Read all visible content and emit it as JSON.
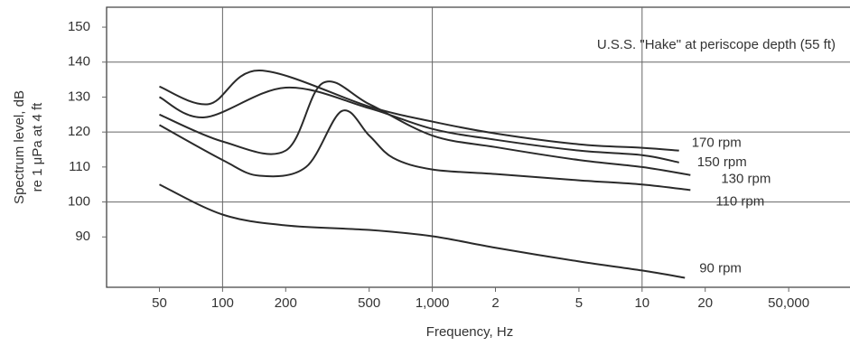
{
  "chart_data": {
    "type": "line",
    "annotation": "U.S.S. \"Hake\" at periscope depth (55 ft)",
    "xlabel": "Frequency, Hz",
    "ylabel": [
      "Spectrum level, dB",
      "re 1 μPa at 4 ft"
    ],
    "xscale": "log",
    "xlim": [
      28,
      98000
    ],
    "ylim": [
      75.6,
      155.7
    ],
    "xticks": [
      50,
      100,
      200,
      500,
      {
        "value": 1000,
        "label": "1,000"
      },
      {
        "value": 2000,
        "label": "2"
      },
      {
        "value": 5000,
        "label": "5"
      },
      {
        "value": 10000,
        "label": "10"
      },
      {
        "value": 20000,
        "label": "20"
      },
      {
        "value": 50000,
        "label": "50,000"
      }
    ],
    "yticks": [
      90,
      100,
      110,
      120,
      130,
      140,
      150
    ],
    "xgrid": [
      100,
      1000,
      10000
    ],
    "ygrid": [
      100,
      120,
      140
    ],
    "series": [
      {
        "name": "170 rpm",
        "color": "#2a2a2a",
        "x": [
          50,
          86,
          150,
          500,
          1000,
          2000,
          5000,
          10000,
          15000
        ],
        "values": [
          133,
          128,
          137.6,
          127.3,
          123,
          119.6,
          116.5,
          115.5,
          114.7
        ]
      },
      {
        "name": "150 rpm",
        "color": "#2a2a2a",
        "x": [
          50,
          82,
          200,
          500,
          1000,
          2000,
          5000,
          10000,
          15000
        ],
        "values": [
          130,
          124.2,
          132.7,
          126.8,
          120.9,
          117.8,
          114.7,
          113.4,
          111.3
        ]
      },
      {
        "name": "130 rpm",
        "color": "#2a2a2a",
        "x": [
          50,
          100,
          200,
          300,
          500,
          1000,
          2000,
          5000,
          10000,
          17000
        ],
        "values": [
          125,
          117.3,
          114.7,
          134,
          128,
          119,
          115.7,
          112,
          110,
          107.7
        ]
      },
      {
        "name": "110 rpm",
        "color": "#2a2a2a",
        "x": [
          50,
          100,
          150,
          250,
          370,
          500,
          650,
          1000,
          2000,
          5000,
          10000,
          17000
        ],
        "values": [
          122,
          112,
          107.5,
          110,
          126,
          119,
          112.6,
          109.3,
          108,
          106.2,
          105,
          103.4
        ]
      },
      {
        "name": "90 rpm",
        "color": "#2a2a2a",
        "x": [
          50,
          100,
          200,
          500,
          1000,
          2000,
          5000,
          10000,
          16000
        ],
        "values": [
          105,
          96.4,
          93.3,
          92,
          90.2,
          86.9,
          83,
          80.4,
          78.3
        ]
      }
    ]
  }
}
